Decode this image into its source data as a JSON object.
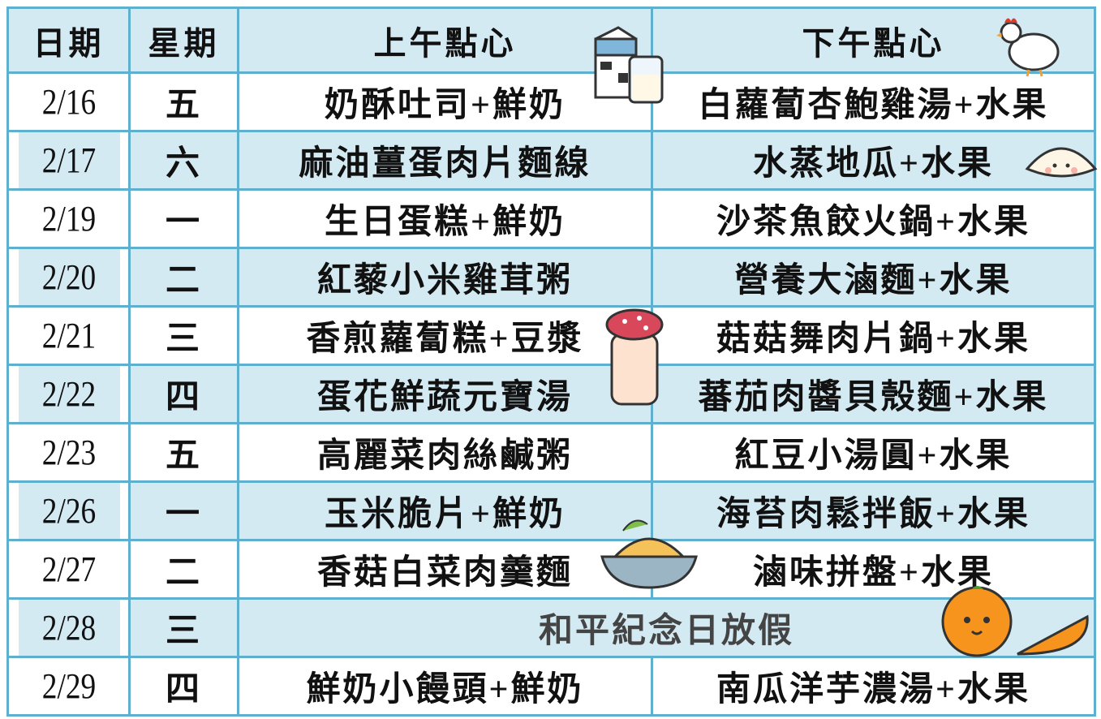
{
  "header": {
    "date": "日期",
    "weekday": "星期",
    "morning": "上午點心",
    "afternoon": "下午點心"
  },
  "rows": [
    {
      "date": "2/16",
      "weekday": "五",
      "morning": "奶酥吐司+鮮奶",
      "afternoon": "白蘿蔔杏鮑雞湯+水果"
    },
    {
      "date": "2/17",
      "weekday": "六",
      "morning": "麻油薑蛋肉片麵線",
      "afternoon": "水蒸地瓜+水果"
    },
    {
      "date": "2/19",
      "weekday": "一",
      "morning": "生日蛋糕+鮮奶",
      "afternoon": "沙茶魚餃火鍋+水果"
    },
    {
      "date": "2/20",
      "weekday": "二",
      "morning": "紅藜小米雞茸粥",
      "afternoon": "營養大滷麵+水果"
    },
    {
      "date": "2/21",
      "weekday": "三",
      "morning": "香煎蘿蔔糕+豆漿",
      "afternoon": "菇菇舞肉片鍋+水果"
    },
    {
      "date": "2/22",
      "weekday": "四",
      "morning": "蛋花鮮蔬元寶湯",
      "afternoon": "蕃茄肉醬貝殼麵+水果"
    },
    {
      "date": "2/23",
      "weekday": "五",
      "morning": "高麗菜肉絲鹹粥",
      "afternoon": "紅豆小湯圓+水果"
    },
    {
      "date": "2/26",
      "weekday": "一",
      "morning": "玉米脆片+鮮奶",
      "afternoon": "海苔肉鬆拌飯+水果"
    },
    {
      "date": "2/27",
      "weekday": "二",
      "morning": "香菇白菜肉羹麵",
      "afternoon": "滷味拼盤+水果"
    },
    {
      "date": "2/28",
      "weekday": "三",
      "note": "和平紀念日放假"
    },
    {
      "date": "2/29",
      "weekday": "四",
      "morning": "鮮奶小饅頭+鮮奶",
      "afternoon": "南瓜洋芋濃湯+水果"
    }
  ]
}
